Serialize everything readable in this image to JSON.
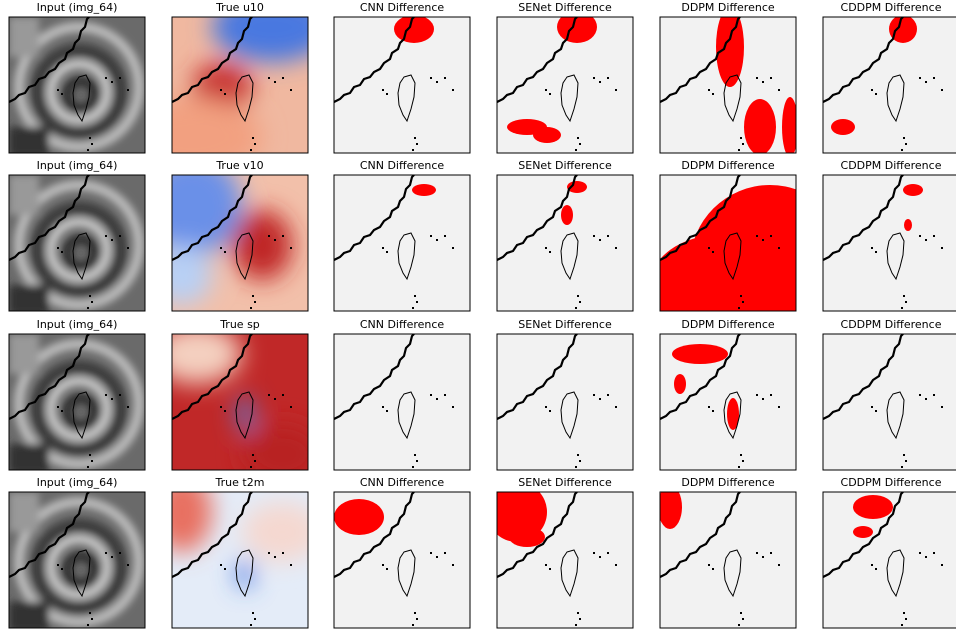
{
  "rows": [
    {
      "panels": [
        "Input (img_64)",
        "True u10",
        "CNN Difference",
        "SENet Difference",
        "DDPM Difference",
        "CDDPM Difference"
      ]
    },
    {
      "panels": [
        "Input (img_64)",
        "True v10",
        "CNN Difference",
        "SENet Difference",
        "DDPM Difference",
        "CDDPM Difference"
      ]
    },
    {
      "panels": [
        "Input (img_64)",
        "True sp",
        "CNN Difference",
        "SENet Difference",
        "DDPM Difference",
        "CDDPM Difference"
      ]
    },
    {
      "panels": [
        "Input (img_64)",
        "True t2m",
        "CNN Difference",
        "SENet Difference",
        "DDPM Difference",
        "CDDPM Difference"
      ]
    }
  ]
}
